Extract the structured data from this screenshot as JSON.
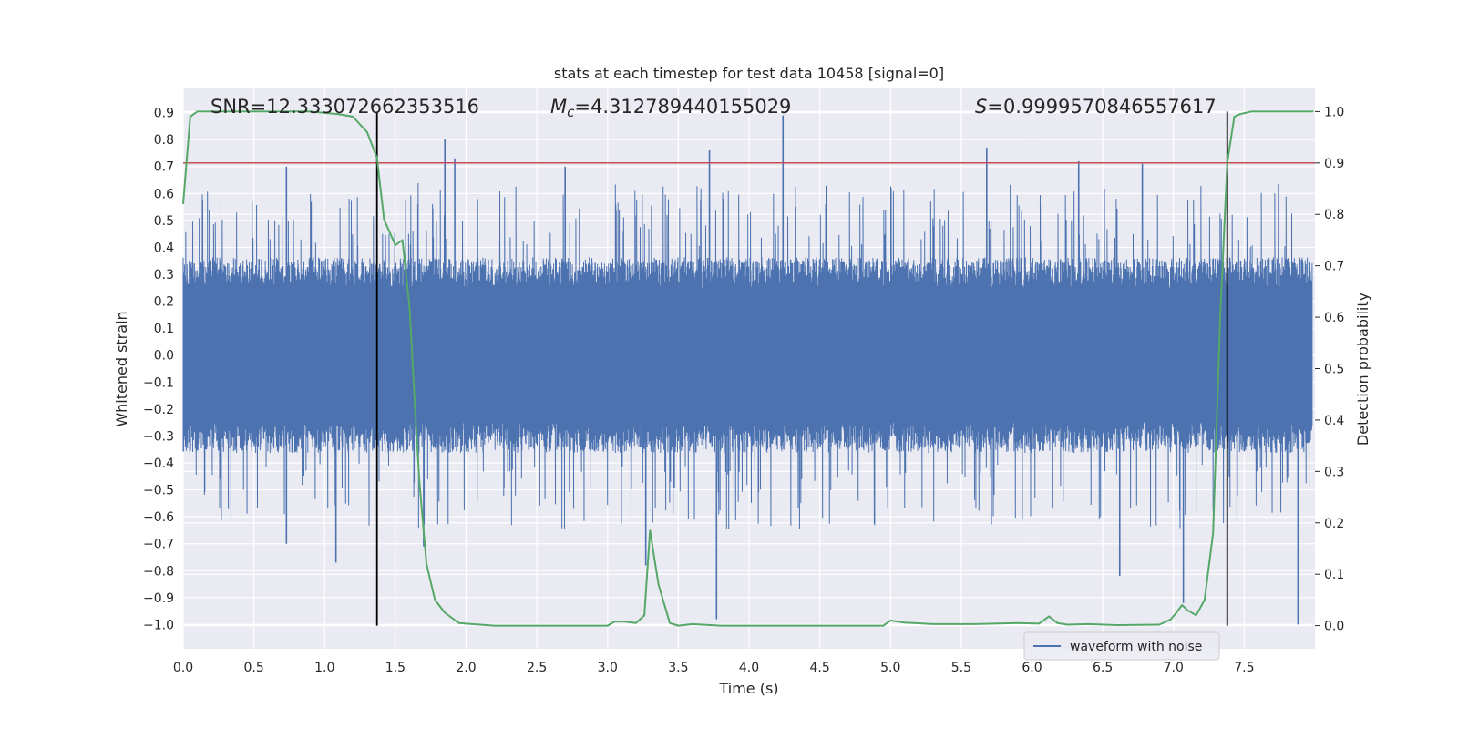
{
  "chart_data": {
    "type": "line",
    "title": "stats at each timestep for test data 10458 [signal=0]",
    "xlabel": "Time (s)",
    "ylabel_left": "Whitened strain",
    "ylabel_right": "Detection probability",
    "xlim": [
      0.0,
      8.0
    ],
    "ylim_left": [
      -1.09,
      0.99
    ],
    "ylim_right": [
      -0.045,
      1.045
    ],
    "x_ticks": [
      "0.0",
      "0.5",
      "1.0",
      "1.5",
      "2.0",
      "2.5",
      "3.0",
      "3.5",
      "4.0",
      "4.5",
      "5.0",
      "5.5",
      "6.0",
      "6.5",
      "7.0",
      "7.5"
    ],
    "y_left_ticks": [
      "0.9",
      "0.8",
      "0.7",
      "0.6",
      "0.5",
      "0.4",
      "0.3",
      "0.2",
      "0.1",
      "0.0",
      "−0.1",
      "−0.2",
      "−0.3",
      "−0.4",
      "−0.5",
      "−0.6",
      "−0.7",
      "−0.8",
      "−0.9",
      "−1.0"
    ],
    "y_right_ticks": [
      "1.0",
      "0.9",
      "0.8",
      "0.7",
      "0.6",
      "0.5",
      "0.4",
      "0.3",
      "0.2",
      "0.1",
      "0.0"
    ],
    "grid": true,
    "annotations": {
      "snr": "SNR=12.333072662353516",
      "mc_symbol": "M",
      "mc_sub": "c",
      "mc_value": "=4.312789440155029",
      "s_symbol": "S",
      "s_value": "=0.9999570846557617"
    },
    "threshold": {
      "value": 0.9,
      "axis": "right",
      "color": "#c44e52"
    },
    "vertical_markers": [
      1.37,
      7.38
    ],
    "waveform": {
      "name": "waveform with noise",
      "color": "#4c72b0",
      "envelope_typical": [
        -0.33,
        0.33
      ],
      "peaks": [
        {
          "x": 1.85,
          "y": 0.8
        },
        {
          "x": 4.24,
          "y": 0.89
        },
        {
          "x": 3.72,
          "y": 0.76
        },
        {
          "x": 5.68,
          "y": 0.77
        },
        {
          "x": 0.73,
          "y": 0.7
        },
        {
          "x": 2.7,
          "y": 0.7
        },
        {
          "x": 6.33,
          "y": 0.72
        },
        {
          "x": 1.92,
          "y": 0.73
        },
        {
          "x": 6.78,
          "y": 0.71
        }
      ],
      "troughs": [
        {
          "x": 1.08,
          "y": -0.77
        },
        {
          "x": 3.27,
          "y": -0.78
        },
        {
          "x": 3.77,
          "y": -0.98
        },
        {
          "x": 7.07,
          "y": -0.92
        },
        {
          "x": 7.88,
          "y": -1.0
        },
        {
          "x": 6.62,
          "y": -0.82
        },
        {
          "x": 0.73,
          "y": -0.7
        },
        {
          "x": 1.7,
          "y": -0.71
        }
      ]
    },
    "probability": {
      "name": "detection probability",
      "color": "#55a868",
      "x": [
        0.0,
        0.05,
        0.1,
        0.3,
        0.6,
        0.9,
        1.1,
        1.2,
        1.25,
        1.3,
        1.37,
        1.42,
        1.5,
        1.55,
        1.6,
        1.64,
        1.67,
        1.72,
        1.78,
        1.85,
        1.95,
        2.2,
        2.6,
        2.9,
        3.0,
        3.05,
        3.12,
        3.2,
        3.26,
        3.3,
        3.36,
        3.44,
        3.5,
        3.6,
        3.8,
        4.0,
        4.5,
        4.95,
        5.0,
        5.1,
        5.3,
        5.6,
        5.9,
        6.05,
        6.12,
        6.18,
        6.25,
        6.4,
        6.6,
        6.9,
        6.98,
        7.02,
        7.06,
        7.1,
        7.16,
        7.22,
        7.28,
        7.33,
        7.38,
        7.43,
        7.47,
        7.55,
        7.7,
        7.99
      ],
      "y": [
        0.82,
        0.99,
        1.0,
        1.0,
        1.0,
        1.0,
        0.995,
        0.99,
        0.975,
        0.96,
        0.91,
        0.79,
        0.74,
        0.75,
        0.62,
        0.42,
        0.28,
        0.12,
        0.05,
        0.025,
        0.005,
        0.0,
        0.0,
        0.0,
        0.0,
        0.008,
        0.008,
        0.005,
        0.02,
        0.185,
        0.08,
        0.005,
        0.0,
        0.003,
        0.0,
        0.0,
        0.0,
        0.0,
        0.01,
        0.006,
        0.003,
        0.003,
        0.005,
        0.004,
        0.018,
        0.005,
        0.002,
        0.003,
        0.001,
        0.002,
        0.012,
        0.025,
        0.04,
        0.03,
        0.02,
        0.05,
        0.18,
        0.6,
        0.9,
        0.99,
        0.995,
        1.0,
        1.0,
        1.0
      ]
    },
    "legend": {
      "position": "lower-right",
      "entries": [
        "waveform with noise"
      ]
    }
  }
}
